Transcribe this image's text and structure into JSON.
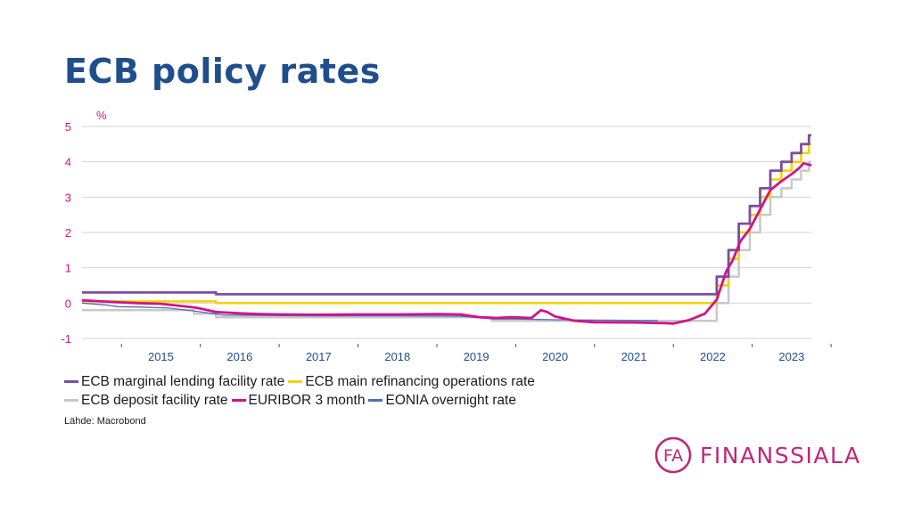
{
  "title": "ECB policy rates",
  "source": "Lähde: Macrobond",
  "logo": {
    "text": "FINANSSIALA",
    "mark": "FA",
    "color": "#c2267a"
  },
  "chart_data": {
    "type": "line",
    "title": "ECB policy rates",
    "ylabel": "%",
    "xlabel": "",
    "ylim": [
      -1,
      5
    ],
    "xlim": [
      2014.5,
      2023.75
    ],
    "yticks": [
      "-1",
      "0",
      "1",
      "2",
      "3",
      "4",
      "5"
    ],
    "xticks": [
      "2015",
      "2016",
      "2017",
      "2018",
      "2019",
      "2020",
      "2021",
      "2022",
      "2023"
    ],
    "legend": [
      [
        "ECB marginal lending facility rate",
        "ECB main refinancing operations rate"
      ],
      [
        "ECB deposit facility rate",
        "EURIBOR 3 month",
        "EONIA overnight rate"
      ]
    ],
    "series": [
      {
        "name": "ECB deposit facility rate",
        "color": "#c8c8cc",
        "width": 2.5,
        "step": true,
        "points": [
          [
            2014.5,
            -0.2
          ],
          [
            2015.92,
            -0.3
          ],
          [
            2016.2,
            -0.4
          ],
          [
            2019.7,
            -0.5
          ],
          [
            2022.55,
            0
          ],
          [
            2022.7,
            0.75
          ],
          [
            2022.83,
            1.5
          ],
          [
            2022.97,
            2.0
          ],
          [
            2023.1,
            2.5
          ],
          [
            2023.23,
            3.0
          ],
          [
            2023.37,
            3.25
          ],
          [
            2023.5,
            3.5
          ],
          [
            2023.62,
            3.75
          ],
          [
            2023.72,
            4.0
          ],
          [
            2023.75,
            4.0
          ]
        ]
      },
      {
        "name": "ECB main refinancing operations rate",
        "color": "#f2d300",
        "width": 2.5,
        "step": true,
        "points": [
          [
            2014.5,
            0.05
          ],
          [
            2016.2,
            0
          ],
          [
            2022.55,
            0.5
          ],
          [
            2022.7,
            1.25
          ],
          [
            2022.83,
            2.0
          ],
          [
            2022.97,
            2.5
          ],
          [
            2023.1,
            3.0
          ],
          [
            2023.23,
            3.5
          ],
          [
            2023.37,
            3.75
          ],
          [
            2023.5,
            4.0
          ],
          [
            2023.62,
            4.25
          ],
          [
            2023.72,
            4.5
          ],
          [
            2023.75,
            4.5
          ]
        ]
      },
      {
        "name": "ECB marginal lending facility rate",
        "color": "#7b4f9e",
        "width": 2.8,
        "step": true,
        "points": [
          [
            2014.5,
            0.3
          ],
          [
            2016.2,
            0.25
          ],
          [
            2022.55,
            0.75
          ],
          [
            2022.7,
            1.5
          ],
          [
            2022.83,
            2.25
          ],
          [
            2022.97,
            2.75
          ],
          [
            2023.1,
            3.25
          ],
          [
            2023.23,
            3.75
          ],
          [
            2023.37,
            4.0
          ],
          [
            2023.5,
            4.25
          ],
          [
            2023.62,
            4.5
          ],
          [
            2023.72,
            4.75
          ],
          [
            2023.75,
            4.75
          ]
        ]
      },
      {
        "name": "EONIA overnight rate",
        "color": "#4a6fb3",
        "width": 1.3,
        "step": false,
        "points": [
          [
            2014.5,
            0.0
          ],
          [
            2014.8,
            -0.05
          ],
          [
            2014.95,
            -0.1
          ],
          [
            2015.2,
            -0.11
          ],
          [
            2015.6,
            -0.14
          ],
          [
            2015.95,
            -0.23
          ],
          [
            2016.3,
            -0.34
          ],
          [
            2016.8,
            -0.35
          ],
          [
            2017.5,
            -0.36
          ],
          [
            2018.5,
            -0.36
          ],
          [
            2019.3,
            -0.37
          ],
          [
            2019.72,
            -0.45
          ],
          [
            2020.0,
            -0.45
          ],
          [
            2020.5,
            -0.47
          ],
          [
            2021.0,
            -0.48
          ],
          [
            2021.6,
            -0.49
          ],
          [
            2021.8,
            -0.49
          ]
        ]
      },
      {
        "name": "EURIBOR 3 month",
        "color": "#d0148a",
        "width": 2.8,
        "step": false,
        "points": [
          [
            2014.5,
            0.08
          ],
          [
            2014.75,
            0.05
          ],
          [
            2015.0,
            0.02
          ],
          [
            2015.2,
            0.0
          ],
          [
            2015.5,
            -0.02
          ],
          [
            2015.75,
            -0.08
          ],
          [
            2015.95,
            -0.13
          ],
          [
            2016.2,
            -0.25
          ],
          [
            2016.5,
            -0.29
          ],
          [
            2016.75,
            -0.31
          ],
          [
            2017.0,
            -0.32
          ],
          [
            2017.5,
            -0.33
          ],
          [
            2018.0,
            -0.32
          ],
          [
            2018.5,
            -0.32
          ],
          [
            2019.0,
            -0.31
          ],
          [
            2019.3,
            -0.32
          ],
          [
            2019.55,
            -0.4
          ],
          [
            2019.75,
            -0.42
          ],
          [
            2019.95,
            -0.4
          ],
          [
            2020.2,
            -0.42
          ],
          [
            2020.32,
            -0.2
          ],
          [
            2020.4,
            -0.25
          ],
          [
            2020.5,
            -0.38
          ],
          [
            2020.75,
            -0.5
          ],
          [
            2021.0,
            -0.54
          ],
          [
            2021.5,
            -0.55
          ],
          [
            2021.9,
            -0.57
          ],
          [
            2022.0,
            -0.58
          ],
          [
            2022.2,
            -0.48
          ],
          [
            2022.4,
            -0.3
          ],
          [
            2022.55,
            0.1
          ],
          [
            2022.67,
            0.9
          ],
          [
            2022.75,
            1.2
          ],
          [
            2022.85,
            1.75
          ],
          [
            2022.97,
            2.1
          ],
          [
            2023.1,
            2.65
          ],
          [
            2023.23,
            3.2
          ],
          [
            2023.37,
            3.45
          ],
          [
            2023.5,
            3.65
          ],
          [
            2023.6,
            3.83
          ],
          [
            2023.65,
            3.96
          ],
          [
            2023.75,
            3.9
          ]
        ]
      }
    ]
  }
}
